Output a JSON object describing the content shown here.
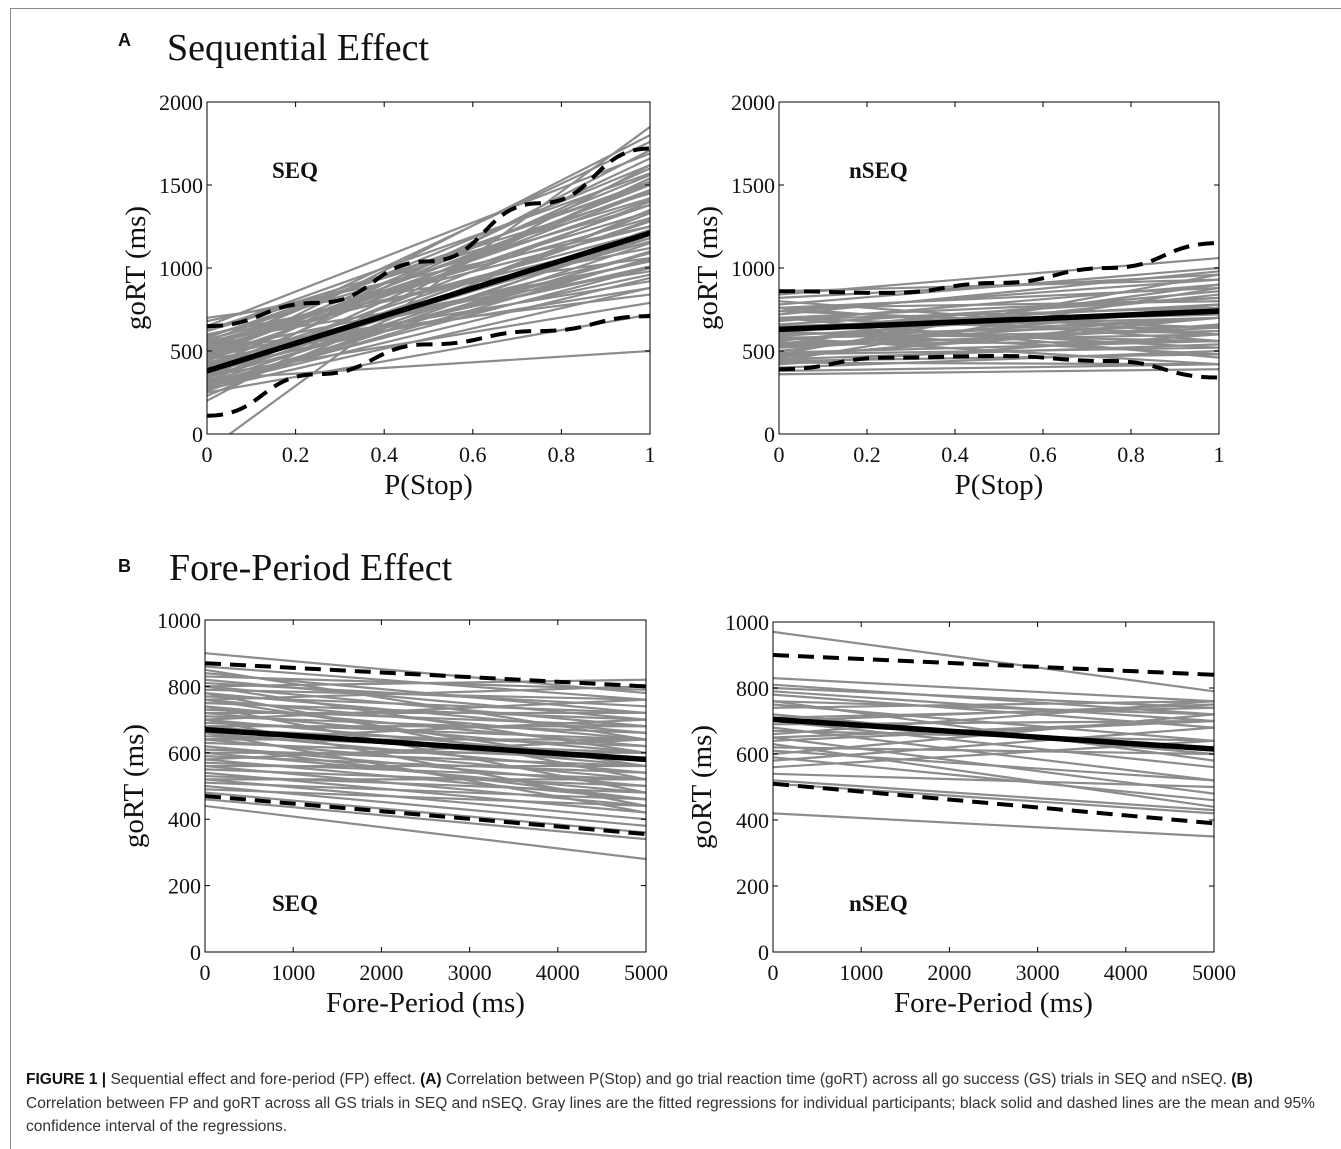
{
  "figure": {
    "panelA": {
      "letter": "A",
      "title": "Sequential Effect"
    },
    "panelB": {
      "letter": "B",
      "title": "Fore-Period Effect"
    },
    "caption": {
      "label": "FIGURE 1 |",
      "intro": " Sequential effect and fore-period (FP) effect. ",
      "a_tag": "(A)",
      "a_text": " Correlation between P(Stop) and go trial reaction time (goRT) across all go success (GS) trials in SEQ and nSEQ. ",
      "b_tag": "(B)",
      "b_text": " Correlation between FP and goRT across all GS trials in SEQ and nSEQ. Gray lines are the fitted regressions for individual participants; black solid and dashed lines are the mean and 95% confidence interval of the regressions."
    }
  },
  "colors": {
    "individual": "#8c8c8c",
    "mean": "#000000",
    "ci": "#000000",
    "axis": "#000000"
  },
  "chart_data": [
    {
      "type": "line",
      "panel": "A",
      "label": "SEQ",
      "xlabel": "P(Stop)",
      "ylabel": "goRT (ms)",
      "xlim": [
        0,
        1
      ],
      "ylim": [
        0,
        2000
      ],
      "xticks": [
        "0",
        "0.2",
        "0.4",
        "0.6",
        "0.8",
        "1"
      ],
      "yticks": [
        "0",
        "500",
        "1000",
        "1500",
        "2000"
      ],
      "grid": false,
      "individual_lines": [
        [
          380,
          1180
        ],
        [
          560,
          1520
        ],
        [
          360,
          1290
        ],
        [
          500,
          1410
        ],
        [
          410,
          1010
        ],
        [
          440,
          1460
        ],
        [
          300,
          1100
        ],
        [
          620,
          1570
        ],
        [
          450,
          880
        ],
        [
          340,
          1230
        ],
        [
          530,
          1340
        ],
        [
          390,
          960
        ],
        [
          470,
          1500
        ],
        [
          280,
          1060
        ],
        [
          570,
          1250
        ],
        [
          420,
          1160
        ],
        [
          350,
          1400
        ],
        [
          600,
          1120
        ],
        [
          320,
          1330
        ],
        [
          480,
          920
        ],
        [
          400,
          1600
        ],
        [
          460,
          1040
        ],
        [
          540,
          1180
        ],
        [
          260,
          1200
        ],
        [
          700,
          1060
        ],
        [
          270,
          880
        ],
        [
          330,
          1710
        ],
        [
          510,
          840
        ],
        [
          250,
          720
        ],
        [
          630,
          1450
        ],
        [
          440,
          1800
        ],
        [
          200,
          1620
        ],
        [
          380,
          1520
        ],
        [
          480,
          1560
        ],
        [
          560,
          980
        ],
        [
          300,
          1000
        ],
        [
          520,
          1620
        ],
        [
          410,
          1280
        ],
        [
          350,
          790
        ],
        [
          650,
          1690
        ],
        [
          490,
          1470
        ],
        [
          230,
          1350
        ],
        [
          590,
          1380
        ],
        [
          430,
          1090
        ],
        [
          310,
          1540
        ],
        [
          550,
          1300
        ],
        [
          260,
          1150
        ],
        [
          680,
          1250
        ],
        [
          370,
          1050
        ],
        [
          500,
          1040
        ],
        [
          400,
          1660
        ],
        [
          620,
          1420
        ],
        [
          290,
          940
        ],
        [
          520,
          1220
        ],
        [
          460,
          1380
        ],
        [
          340,
          1090
        ],
        [
          580,
          1510
        ],
        [
          420,
          1000
        ],
        [
          310,
          1180
        ],
        [
          500,
          1760
        ],
        [
          330,
          500
        ],
        [
          -100,
          1850
        ]
      ],
      "mean": [
        380,
        1210
      ],
      "ci_upper": [
        [
          0,
          650
        ],
        [
          0.25,
          790
        ],
        [
          0.5,
          1040
        ],
        [
          0.75,
          1390
        ],
        [
          1,
          1720
        ]
      ],
      "ci_lower": [
        [
          0,
          110
        ],
        [
          0.25,
          360
        ],
        [
          0.5,
          540
        ],
        [
          0.75,
          620
        ],
        [
          1,
          710
        ]
      ]
    },
    {
      "type": "line",
      "panel": "A",
      "label": "nSEQ",
      "xlabel": "P(Stop)",
      "ylabel": "goRT (ms)",
      "xlim": [
        0,
        1
      ],
      "ylim": [
        0,
        2000
      ],
      "xticks": [
        "0",
        "0.2",
        "0.4",
        "0.6",
        "0.8",
        "1"
      ],
      "yticks": [
        "0",
        "500",
        "1000",
        "1500",
        "2000"
      ],
      "grid": false,
      "individual_lines": [
        [
          840,
          1060
        ],
        [
          820,
          960
        ],
        [
          780,
          1000
        ],
        [
          760,
          880
        ],
        [
          740,
          930
        ],
        [
          720,
          980
        ],
        [
          700,
          820
        ],
        [
          690,
          760
        ],
        [
          680,
          900
        ],
        [
          660,
          820
        ],
        [
          650,
          720
        ],
        [
          640,
          780
        ],
        [
          630,
          700
        ],
        [
          620,
          860
        ],
        [
          600,
          650
        ],
        [
          590,
          760
        ],
        [
          580,
          620
        ],
        [
          570,
          700
        ],
        [
          560,
          840
        ],
        [
          550,
          600
        ],
        [
          540,
          560
        ],
        [
          530,
          700
        ],
        [
          520,
          640
        ],
        [
          500,
          780
        ],
        [
          490,
          560
        ],
        [
          480,
          520
        ],
        [
          470,
          660
        ],
        [
          450,
          540
        ],
        [
          440,
          480
        ],
        [
          430,
          420
        ],
        [
          420,
          600
        ],
        [
          400,
          500
        ],
        [
          380,
          420
        ],
        [
          360,
          390
        ],
        [
          800,
          600
        ],
        [
          760,
          560
        ],
        [
          700,
          460
        ],
        [
          660,
          520
        ],
        [
          620,
          480
        ],
        [
          580,
          420
        ],
        [
          520,
          760
        ],
        [
          460,
          700
        ],
        [
          440,
          880
        ],
        [
          480,
          960
        ],
        [
          740,
          640
        ],
        [
          700,
          600
        ],
        [
          610,
          560
        ],
        [
          760,
          800
        ],
        [
          540,
          900
        ],
        [
          860,
          930
        ]
      ],
      "mean": [
        630,
        740
      ],
      "ci_upper": [
        [
          0,
          860
        ],
        [
          0.25,
          850
        ],
        [
          0.5,
          910
        ],
        [
          0.75,
          1000
        ],
        [
          1,
          1150
        ]
      ],
      "ci_lower": [
        [
          0,
          390
        ],
        [
          0.25,
          460
        ],
        [
          0.5,
          470
        ],
        [
          0.75,
          440
        ],
        [
          1,
          340
        ]
      ]
    },
    {
      "type": "line",
      "panel": "B",
      "label": "SEQ",
      "xlabel": "Fore-Period (ms)",
      "ylabel": "goRT (ms)",
      "xlim": [
        0,
        5000
      ],
      "ylim": [
        0,
        1000
      ],
      "xticks": [
        "0",
        "1000",
        "2000",
        "3000",
        "4000",
        "5000"
      ],
      "yticks": [
        "0",
        "200",
        "400",
        "600",
        "800",
        "1000"
      ],
      "grid": false,
      "individual_lines": [
        [
          900,
          780
        ],
        [
          860,
          760
        ],
        [
          840,
          720
        ],
        [
          830,
          790
        ],
        [
          820,
          700
        ],
        [
          810,
          740
        ],
        [
          800,
          680
        ],
        [
          790,
          760
        ],
        [
          780,
          660
        ],
        [
          770,
          720
        ],
        [
          760,
          640
        ],
        [
          750,
          700
        ],
        [
          740,
          620
        ],
        [
          730,
          680
        ],
        [
          720,
          600
        ],
        [
          710,
          660
        ],
        [
          700,
          580
        ],
        [
          690,
          640
        ],
        [
          680,
          560
        ],
        [
          670,
          620
        ],
        [
          660,
          540
        ],
        [
          650,
          600
        ],
        [
          640,
          520
        ],
        [
          630,
          580
        ],
        [
          620,
          500
        ],
        [
          610,
          560
        ],
        [
          600,
          480
        ],
        [
          590,
          540
        ],
        [
          580,
          460
        ],
        [
          570,
          520
        ],
        [
          560,
          440
        ],
        [
          550,
          500
        ],
        [
          540,
          420
        ],
        [
          530,
          480
        ],
        [
          520,
          400
        ],
        [
          510,
          460
        ],
        [
          500,
          380
        ],
        [
          490,
          440
        ],
        [
          480,
          360
        ],
        [
          460,
          340
        ],
        [
          440,
          280
        ],
        [
          850,
          640
        ],
        [
          800,
          600
        ],
        [
          760,
          560
        ],
        [
          720,
          720
        ],
        [
          680,
          680
        ],
        [
          640,
          640
        ],
        [
          600,
          600
        ],
        [
          560,
          560
        ],
        [
          520,
          520
        ],
        [
          780,
          520
        ],
        [
          740,
          480
        ],
        [
          700,
          440
        ],
        [
          660,
          420
        ],
        [
          620,
          460
        ],
        [
          800,
          820
        ],
        [
          760,
          800
        ],
        [
          700,
          760
        ],
        [
          640,
          700
        ],
        [
          580,
          640
        ]
      ],
      "mean": [
        670,
        580
      ],
      "ci_upper": [
        [
          0,
          870
        ],
        [
          5000,
          800
        ]
      ],
      "ci_lower": [
        [
          0,
          470
        ],
        [
          5000,
          355
        ]
      ]
    },
    {
      "type": "line",
      "panel": "B",
      "label": "nSEQ",
      "xlabel": "Fore-Period (ms)",
      "ylabel": "goRT (ms)",
      "xlim": [
        0,
        5000
      ],
      "ylim": [
        0,
        1000
      ],
      "xticks": [
        "0",
        "1000",
        "2000",
        "3000",
        "4000",
        "5000"
      ],
      "yticks": [
        "0",
        "200",
        "400",
        "600",
        "800",
        "1000"
      ],
      "grid": false,
      "individual_lines": [
        [
          970,
          790
        ],
        [
          830,
          760
        ],
        [
          810,
          720
        ],
        [
          800,
          740
        ],
        [
          790,
          700
        ],
        [
          780,
          680
        ],
        [
          760,
          720
        ],
        [
          750,
          640
        ],
        [
          740,
          760
        ],
        [
          720,
          600
        ],
        [
          710,
          740
        ],
        [
          700,
          560
        ],
        [
          690,
          700
        ],
        [
          680,
          520
        ],
        [
          670,
          640
        ],
        [
          660,
          760
        ],
        [
          650,
          480
        ],
        [
          640,
          700
        ],
        [
          630,
          440
        ],
        [
          620,
          600
        ],
        [
          610,
          520
        ],
        [
          600,
          720
        ],
        [
          590,
          460
        ],
        [
          580,
          680
        ],
        [
          560,
          640
        ],
        [
          540,
          500
        ],
        [
          520,
          430
        ],
        [
          510,
          420
        ],
        [
          420,
          350
        ],
        [
          700,
          750
        ],
        [
          760,
          580
        ],
        [
          650,
          700
        ]
      ],
      "mean": [
        705,
        615
      ],
      "ci_upper": [
        [
          0,
          900
        ],
        [
          5000,
          840
        ]
      ],
      "ci_lower": [
        [
          0,
          510
        ],
        [
          5000,
          390
        ]
      ]
    }
  ]
}
